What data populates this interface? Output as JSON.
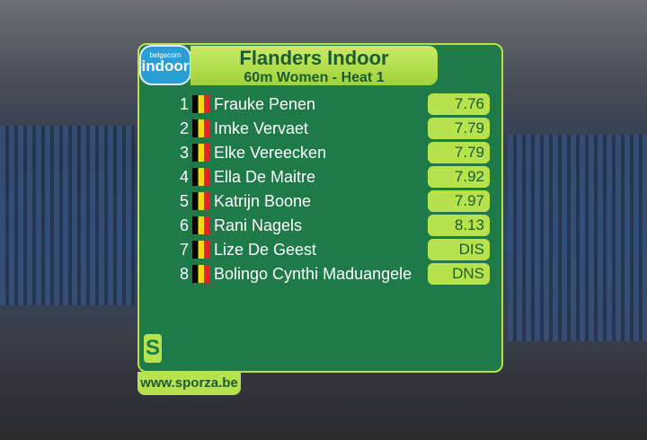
{
  "logo": {
    "brand": "belgacom",
    "name": "indoor"
  },
  "header": {
    "title": "Flanders Indoor",
    "subtitle": "60m Women - Heat 1"
  },
  "results": [
    {
      "rank": 1,
      "name": "Frauke Penen",
      "result": "7.76"
    },
    {
      "rank": 2,
      "name": "Imke Vervaet",
      "result": "7.79"
    },
    {
      "rank": 3,
      "name": "Elke Vereecken",
      "result": "7.79"
    },
    {
      "rank": 4,
      "name": "Ella De Maitre",
      "result": "7.92"
    },
    {
      "rank": 5,
      "name": "Katrijn Boone",
      "result": "7.97"
    },
    {
      "rank": 6,
      "name": "Rani Nagels",
      "result": "8.13"
    },
    {
      "rank": 7,
      "name": "Lize De Geest",
      "result": "DIS"
    },
    {
      "rank": 8,
      "name": "Bolingo Cynthi Maduangele",
      "result": "DNS"
    }
  ],
  "footer": {
    "logo": "S",
    "url": "www.sporza.be"
  }
}
